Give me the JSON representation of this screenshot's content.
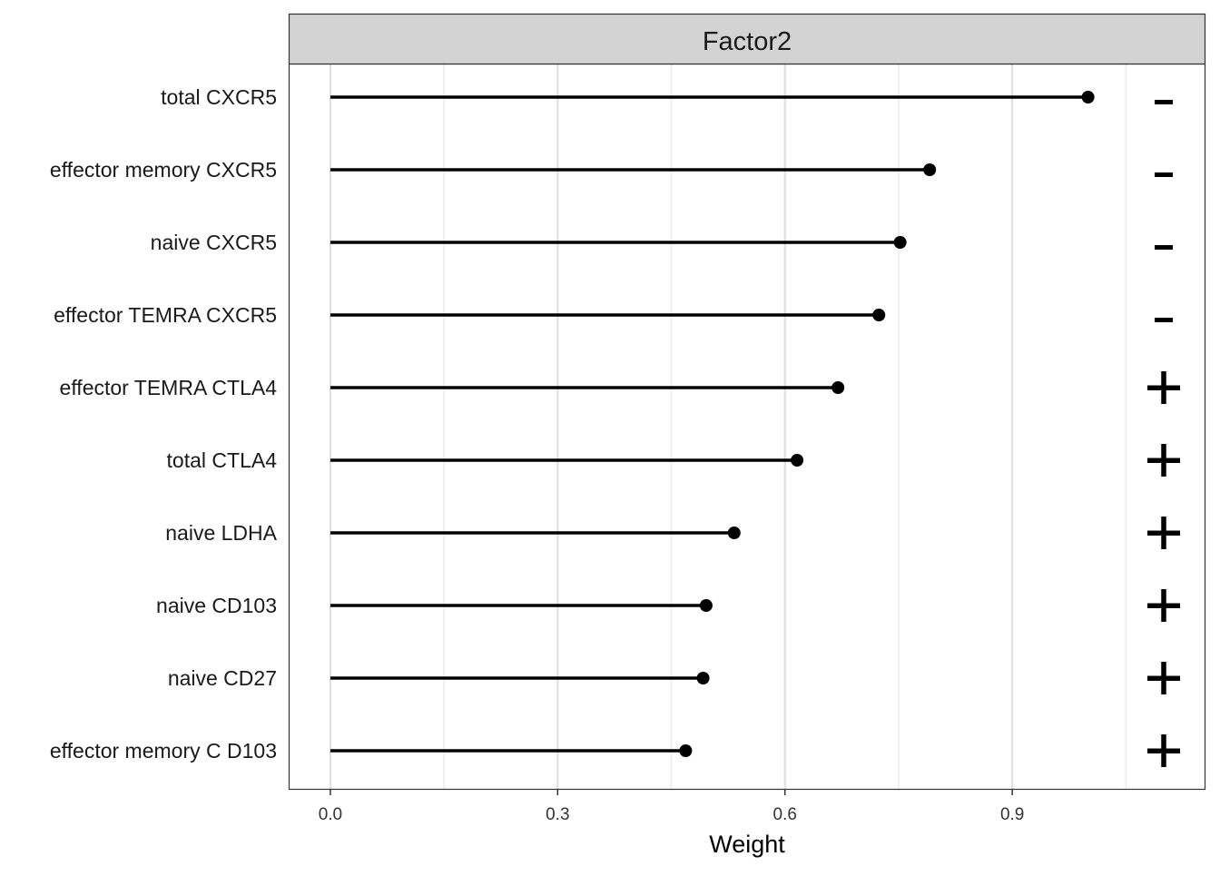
{
  "chart_data": {
    "type": "lollipop",
    "strip_title": "Factor2",
    "xlabel": "Weight",
    "ylabel": "",
    "xlim": [
      -0.055,
      1.155
    ],
    "x_ticks": [
      0.0,
      0.3,
      0.6,
      0.9
    ],
    "x_tick_labels": [
      "0.0",
      "0.3",
      "0.6",
      "0.9"
    ],
    "grid": true,
    "categories": [
      "total CXCR5",
      "effector memory CXCR5",
      "naive CXCR5",
      "effector TEMRA CXCR5",
      "effector TEMRA CTLA4",
      "total CTLA4",
      "naive LDHA",
      "naive CD103",
      "naive CD27",
      "effector memory C D103"
    ],
    "values": [
      1.0,
      0.791,
      0.752,
      0.724,
      0.67,
      0.616,
      0.533,
      0.496,
      0.492,
      0.469
    ],
    "signs": [
      "-",
      "-",
      "-",
      "-",
      "+",
      "+",
      "+",
      "+",
      "+",
      "+"
    ]
  }
}
